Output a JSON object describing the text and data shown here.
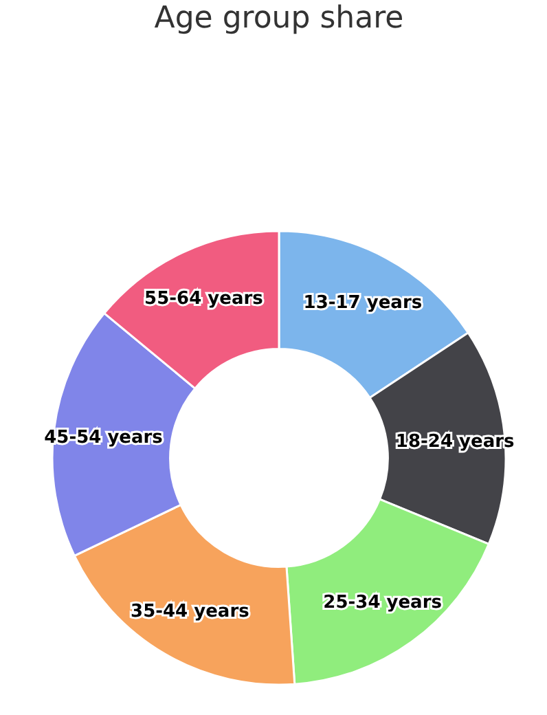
{
  "chart_data": {
    "type": "donut",
    "title": "Age group share",
    "categories": [
      "13-17 years",
      "18-24 years",
      "25-34 years",
      "35-44 years",
      "45-54 years",
      "55-64 years"
    ],
    "values": [
      15.7,
      15.5,
      17.7,
      19.0,
      18.1,
      14.0
    ],
    "colors": [
      "#7cb5ec",
      "#434348",
      "#90ed7d",
      "#f7a35c",
      "#8085e9",
      "#f15c80"
    ]
  }
}
